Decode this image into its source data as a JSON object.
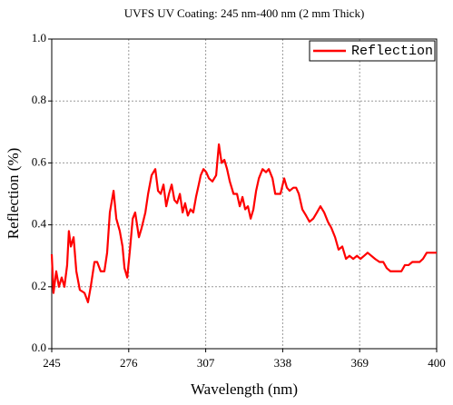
{
  "chart_data": {
    "type": "line",
    "title": "UVFS UV Coating: 245 nm-400 nm (2 mm Thick)",
    "x_label": "Wavelength (nm)",
    "y_label": "Reflection (%)",
    "x": [
      245,
      245.7,
      246.8,
      247.9,
      249.0,
      250.1,
      251.2,
      251.9,
      252.7,
      253.8,
      254.9,
      256.3,
      258.2,
      259.6,
      260.7,
      262.2,
      263.3,
      264.7,
      266.2,
      267.3,
      268.4,
      269.9,
      271.0,
      272.4,
      273.5,
      274.3,
      275.4,
      276.5,
      277.6,
      278.6,
      280.1,
      281.2,
      282.7,
      283.8,
      285.2,
      286.7,
      287.8,
      288.9,
      290.0,
      291.1,
      292.2,
      293.3,
      294.4,
      295.5,
      296.6,
      297.7,
      298.7,
      299.8,
      300.9,
      302.0,
      303.1,
      304.2,
      305.0,
      306.1,
      307.2,
      308.3,
      309.7,
      311.2,
      312.3,
      313.4,
      314.5,
      315.6,
      316.7,
      318.2,
      319.6,
      320.7,
      321.8,
      322.9,
      324.0,
      325.1,
      326.2,
      327.3,
      328.4,
      329.9,
      331.3,
      332.4,
      333.9,
      335.0,
      336.0,
      337.1,
      338.6,
      339.7,
      340.8,
      342.3,
      343.4,
      344.5,
      345.9,
      347.4,
      348.8,
      350.3,
      351.8,
      353.2,
      354.7,
      356.2,
      357.6,
      359.1,
      360.5,
      362.0,
      363.5,
      364.9,
      366.4,
      367.9,
      369.3,
      370.8,
      372.2,
      373.7,
      375.2,
      377.0,
      378.5,
      379.9,
      381.4,
      382.8,
      384.3,
      385.8,
      387.2,
      388.7,
      390.2,
      391.6,
      393.1,
      394.5,
      396.0,
      397.5,
      398.9,
      400
    ],
    "series": [
      {
        "name": "Reflection",
        "color": "#ff0000",
        "values": [
          0.305,
          0.18,
          0.25,
          0.2,
          0.23,
          0.2,
          0.27,
          0.38,
          0.33,
          0.36,
          0.25,
          0.19,
          0.18,
          0.15,
          0.2,
          0.28,
          0.28,
          0.25,
          0.25,
          0.31,
          0.44,
          0.51,
          0.42,
          0.38,
          0.33,
          0.26,
          0.23,
          0.32,
          0.42,
          0.44,
          0.36,
          0.39,
          0.44,
          0.5,
          0.56,
          0.58,
          0.51,
          0.5,
          0.53,
          0.46,
          0.5,
          0.53,
          0.48,
          0.47,
          0.5,
          0.44,
          0.47,
          0.43,
          0.45,
          0.44,
          0.49,
          0.53,
          0.56,
          0.58,
          0.57,
          0.55,
          0.54,
          0.56,
          0.66,
          0.6,
          0.61,
          0.58,
          0.54,
          0.5,
          0.5,
          0.46,
          0.49,
          0.45,
          0.46,
          0.42,
          0.45,
          0.51,
          0.55,
          0.58,
          0.57,
          0.58,
          0.55,
          0.5,
          0.5,
          0.5,
          0.55,
          0.52,
          0.51,
          0.52,
          0.52,
          0.5,
          0.45,
          0.43,
          0.41,
          0.42,
          0.44,
          0.46,
          0.44,
          0.41,
          0.39,
          0.36,
          0.32,
          0.33,
          0.29,
          0.3,
          0.29,
          0.3,
          0.29,
          0.3,
          0.31,
          0.3,
          0.29,
          0.28,
          0.28,
          0.26,
          0.25,
          0.25,
          0.25,
          0.25,
          0.27,
          0.27,
          0.28,
          0.28,
          0.28,
          0.29,
          0.31,
          0.31,
          0.31,
          0.31
        ]
      }
    ],
    "xlim": [
      245,
      400
    ],
    "xticks": [
      245,
      276,
      307,
      338,
      369,
      400
    ],
    "ylim": [
      0,
      1
    ],
    "yticks": [
      {
        "value": 0,
        "label": "0.0"
      },
      0.2,
      0.4,
      0.6,
      0.8,
      {
        "value": 1,
        "label": "1.0"
      }
    ],
    "grid": true,
    "legend": "upper right"
  }
}
